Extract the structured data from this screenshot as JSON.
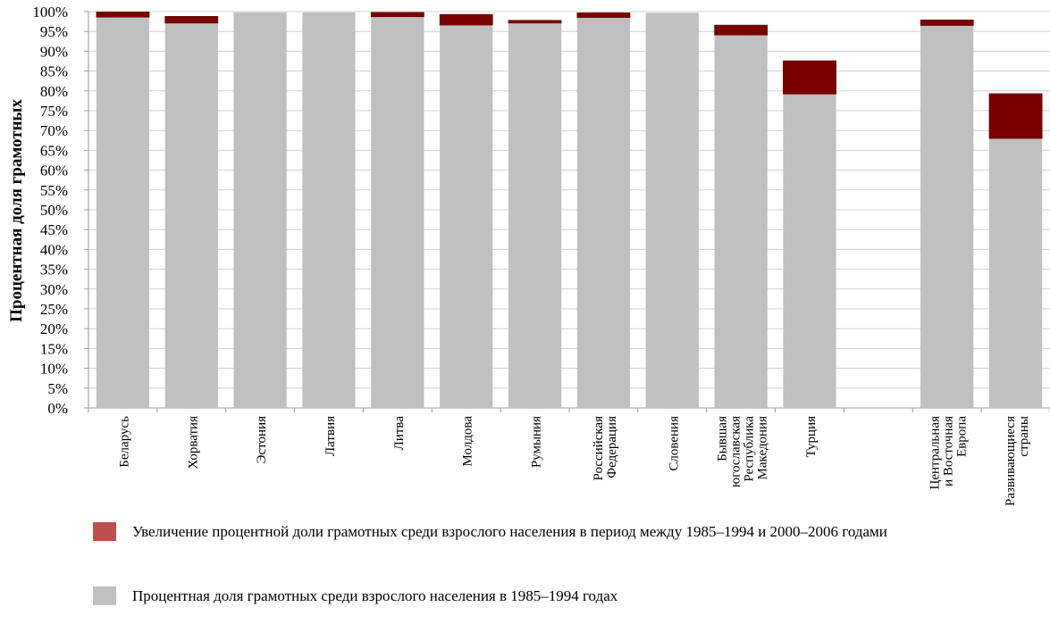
{
  "chart_data": {
    "type": "bar",
    "stacked": true,
    "ylabel": "Процентная доля грамотных",
    "ylim": [
      0,
      100
    ],
    "ytick_step": 5,
    "categories": [
      [
        "Беларусь"
      ],
      [
        "Хорватия"
      ],
      [
        "Эстония"
      ],
      [
        "Латвия"
      ],
      [
        "Литва"
      ],
      [
        "Молдова"
      ],
      [
        "Румыния"
      ],
      [
        "Российская",
        "Федерация"
      ],
      [
        "Словения"
      ],
      [
        "Бывшая",
        "югославская",
        "Республика",
        "Македония"
      ],
      [
        "Турция"
      ],
      [
        ""
      ],
      [
        "Центральная",
        "и Восточная",
        "Европа"
      ],
      [
        "Развивающиеся",
        "страны"
      ]
    ],
    "series": [
      {
        "name": "Процентная доля грамотных среди взрослого населения в 1985–1994 годах",
        "color": "#c0c0c0",
        "values": [
          98.6,
          97.1,
          99.8,
          99.8,
          98.7,
          96.6,
          97.1,
          98.5,
          99.7,
          94.1,
          79.2,
          null,
          96.5,
          68.0
        ]
      },
      {
        "name": "Увеличение процентной доли грамотных среди взрослого населения в период между 1985–1994 и 2000–2006 годами",
        "color": "#7b0000",
        "values": [
          1.3,
          1.7,
          0.0,
          0.0,
          1.1,
          2.7,
          0.7,
          1.2,
          0.0,
          2.5,
          8.4,
          null,
          1.4,
          11.3
        ]
      }
    ],
    "legend": [
      {
        "label": "Увеличение процентной доли грамотных среди взрослого населения в период между 1985–1994 и 2000–2006 годами",
        "color": "#c0504d"
      },
      {
        "label": "Процентная доля грамотных среди взрослого населения в 1985–1994 годах",
        "color": "#c0c0c0"
      }
    ],
    "grid": true,
    "legend_position": "bottom"
  }
}
